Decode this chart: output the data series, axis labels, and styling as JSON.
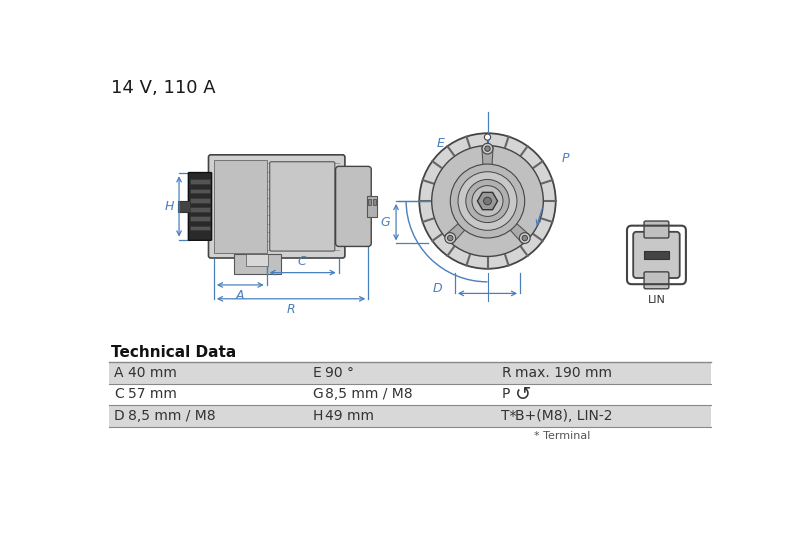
{
  "title": "14 V, 110 A",
  "bg_color": "#ffffff",
  "table_header": "Technical Data",
  "table_rows": [
    [
      "A",
      "40 mm",
      "E",
      "90 °",
      "R",
      "max. 190 mm"
    ],
    [
      "C",
      "57 mm",
      "G",
      "8,5 mm / M8",
      "P",
      "↺"
    ],
    [
      "D",
      "8,5 mm / M8",
      "H",
      "49 mm",
      "T*",
      "B+(M8), LIN-2"
    ]
  ],
  "footnote": "* Terminal",
  "row_bg_colors": [
    "#d8d8d8",
    "#ffffff",
    "#d8d8d8"
  ],
  "lc": "#4a7fbd",
  "connector_label": "LIN",
  "diagram_color": "#e8e8e8",
  "diagram_edge": "#555555",
  "dim_color": "#5588cc"
}
